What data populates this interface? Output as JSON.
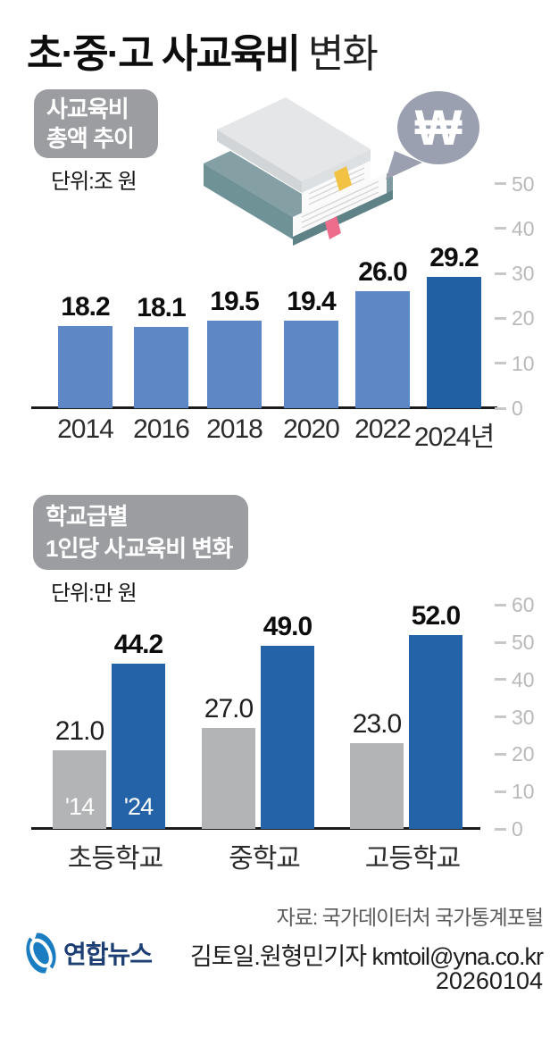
{
  "title": {
    "main": "초·중·고 사교육비",
    "suffix": "변화"
  },
  "colors": {
    "badge_gray": "#9b9da1",
    "bar_light_blue": "#5d88c5",
    "bar_dark_blue": "#2160a3",
    "bar_blue": "#2563a8",
    "bar_gray": "#b3b4b6",
    "axis_black": "#1a1a1a",
    "tick_gray": "#b9b9b9",
    "bubble_gray": "#9aa0af",
    "logo_blue": "#1a7cc1",
    "logo_navy": "#1c3e73"
  },
  "chart_data": [
    {
      "type": "bar",
      "title": "사교육비 총액 추이",
      "badge_lines": [
        "사교육비",
        "총액 추이"
      ],
      "unit": "단위:조 원",
      "categories": [
        "2014",
        "2016",
        "2018",
        "2020",
        "2022",
        "2024년"
      ],
      "values": [
        18.2,
        18.1,
        19.5,
        19.4,
        26.0,
        29.2
      ],
      "value_labels": [
        "18.2",
        "18.1",
        "19.5",
        "19.4",
        "26.0",
        "29.2"
      ],
      "ylim": [
        0,
        50
      ],
      "yticks": [
        0,
        10,
        20,
        30,
        40,
        50
      ],
      "grid": false,
      "legend": "none",
      "note": "last bar highlighted dark blue"
    },
    {
      "type": "bar",
      "title": "학교급별 1인당 사교육비 변화",
      "badge_lines": [
        "학교급별",
        "1인당 사교육비 변화"
      ],
      "unit": "단위:만 원",
      "categories": [
        "초등학교",
        "중학교",
        "고등학교"
      ],
      "series": [
        {
          "name": "'14",
          "values": [
            21.0,
            27.0,
            23.0
          ]
        },
        {
          "name": "'24",
          "values": [
            44.2,
            49.0,
            52.0
          ]
        }
      ],
      "value_labels": [
        [
          "21.0",
          "27.0",
          "23.0"
        ],
        [
          "44.2",
          "49.0",
          "52.0"
        ]
      ],
      "ylim": [
        0,
        60
      ],
      "yticks": [
        0,
        10,
        20,
        30,
        40,
        50,
        60
      ],
      "grid": false,
      "legend": "series names shown in white inside first group bars"
    }
  ],
  "icons": {
    "won_symbol": "₩"
  },
  "footer": {
    "source": "자료: 국가데이터처 국가통계포털",
    "byline": "김토일.원형민기자 kmtoil@yna.co.kr",
    "date": "20260104",
    "logo_text": "연합뉴스"
  }
}
